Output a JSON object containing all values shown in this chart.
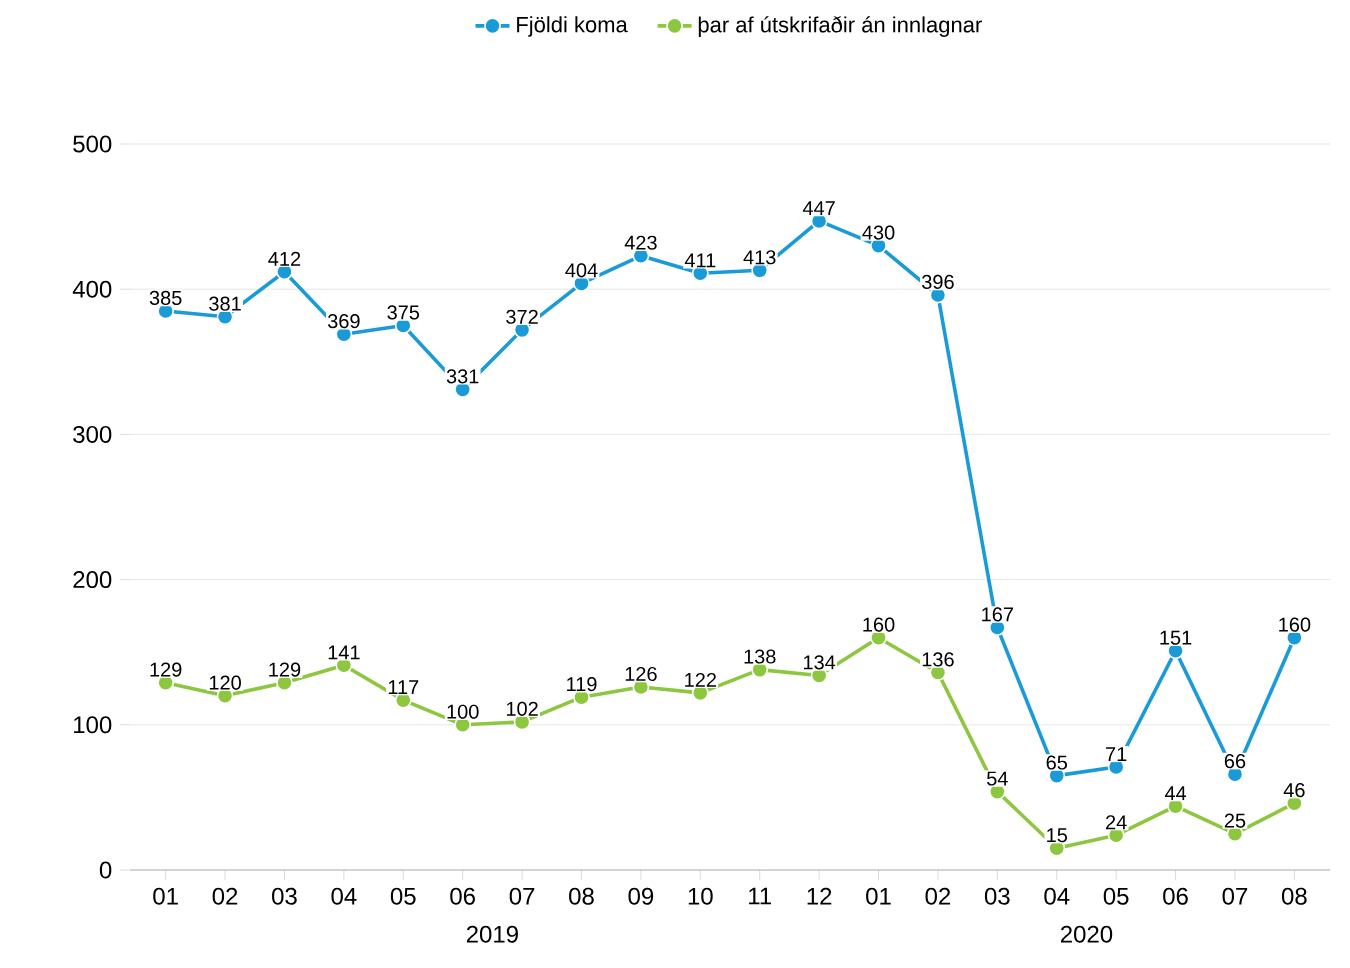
{
  "chart_data": {
    "type": "line",
    "categories": [
      "01",
      "02",
      "03",
      "04",
      "05",
      "06",
      "07",
      "08",
      "09",
      "10",
      "11",
      "12",
      "01",
      "02",
      "03",
      "04",
      "05",
      "06",
      "07",
      "08"
    ],
    "series": [
      {
        "name": "Fjöldi koma",
        "color": "#1a9bd7",
        "values": [
          385,
          381,
          412,
          369,
          375,
          331,
          372,
          404,
          423,
          411,
          413,
          447,
          430,
          396,
          167,
          65,
          71,
          151,
          66,
          160
        ]
      },
      {
        "name": "þar af útskrifaðir án innlagnar",
        "color": "#8dc63f",
        "values": [
          129,
          120,
          129,
          141,
          117,
          100,
          102,
          119,
          126,
          122,
          138,
          134,
          160,
          136,
          54,
          15,
          24,
          44,
          25,
          46
        ]
      }
    ],
    "ylim": [
      0,
      500
    ],
    "yticks": [
      0,
      100,
      200,
      300,
      400,
      500
    ],
    "grid": "y",
    "legend": "top",
    "marker": "circle",
    "line_style": "solid",
    "data_labels": true,
    "annotations": [
      "2019",
      "2020"
    ]
  }
}
